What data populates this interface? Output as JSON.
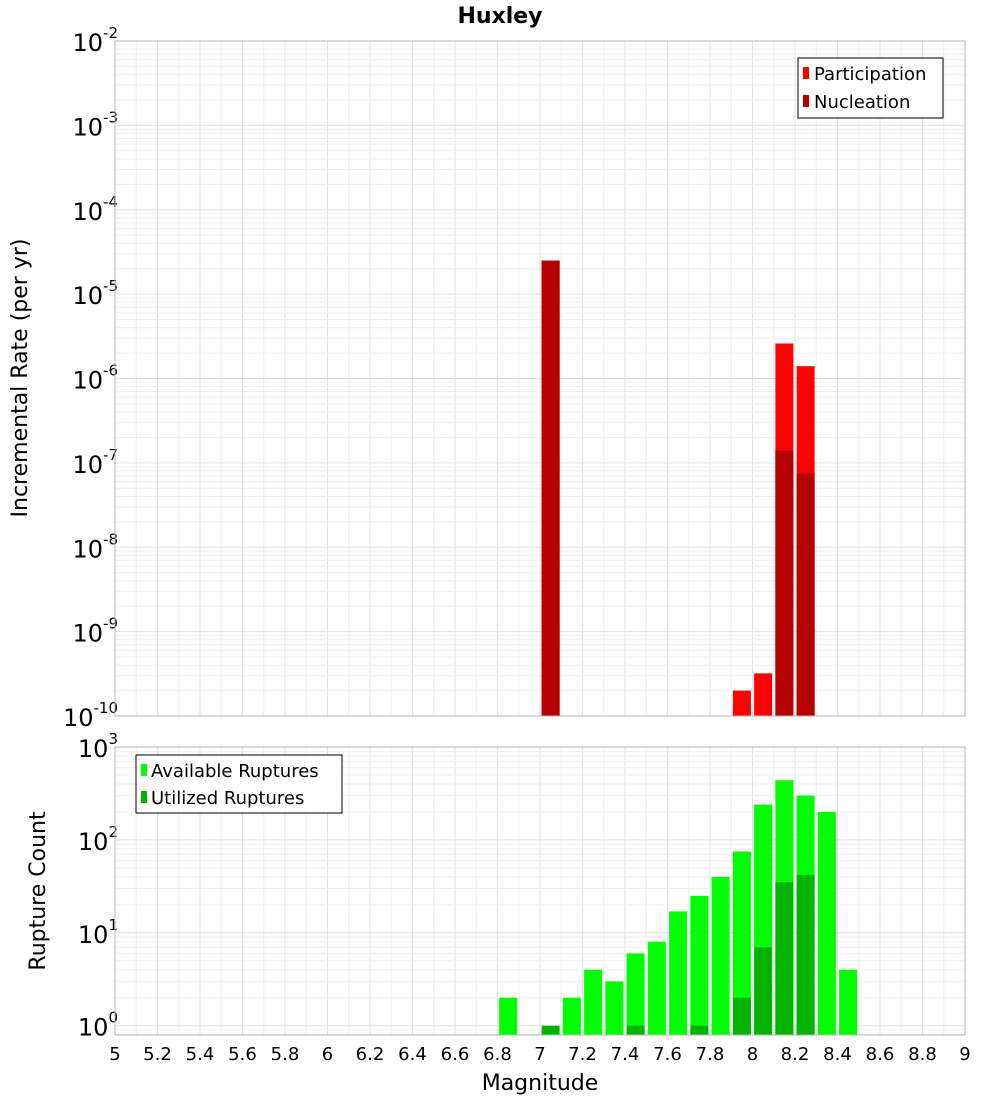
{
  "chart_data": [
    {
      "type": "bar",
      "title": "Huxley",
      "ylabel": "Incremental Rate (per yr)",
      "xlim": [
        5,
        9
      ],
      "ylim_log10": [
        -10,
        -2
      ],
      "y_scale": "log",
      "grid": true,
      "legend_placement": "top-right",
      "series": [
        {
          "name": "Participation",
          "color": "#ff0000",
          "x": [
            7.05,
            7.95,
            8.05,
            8.15,
            8.25
          ],
          "values": [
            2.5e-05,
            2e-10,
            3.2e-10,
            2.6e-06,
            1.4e-06
          ]
        },
        {
          "name": "Nucleation",
          "color": "#b40000",
          "x": [
            7.05,
            8.15,
            8.25
          ],
          "values": [
            2.5e-05,
            1.4e-07,
            7.5e-08
          ]
        }
      ]
    },
    {
      "type": "bar",
      "xlabel": "Magnitude",
      "ylabel": "Rupture Count",
      "xlim": [
        5,
        9
      ],
      "ylim_log10": [
        -0.1,
        3
      ],
      "y_scale": "log",
      "grid": true,
      "legend_placement": "top-left",
      "series": [
        {
          "name": "Available Ruptures",
          "color": "#00ff00",
          "x": [
            6.85,
            7.15,
            7.25,
            7.35,
            7.45,
            7.55,
            7.65,
            7.75,
            7.85,
            7.95,
            8.05,
            8.15,
            8.25,
            8.35,
            8.45
          ],
          "values": [
            2,
            2,
            4,
            3,
            6,
            8,
            17,
            25,
            40,
            75,
            240,
            440,
            300,
            200,
            4
          ]
        },
        {
          "name": "Utilized Ruptures",
          "color": "#00b400",
          "x": [
            7.05,
            7.45,
            7.75,
            7.95,
            8.05,
            8.15,
            8.25
          ],
          "values": [
            1,
            1,
            1,
            2,
            7,
            35,
            42
          ]
        }
      ]
    }
  ],
  "x_ticks": [
    "5",
    "5.2",
    "5.4",
    "5.6",
    "5.8",
    "6",
    "6.2",
    "6.4",
    "6.6",
    "6.8",
    "7",
    "7.2",
    "7.4",
    "7.6",
    "7.8",
    "8",
    "8.2",
    "8.4",
    "8.6",
    "8.8",
    "9"
  ],
  "top_y_ticks": [
    {
      "base": "10",
      "exp": "-2",
      "log": -2
    },
    {
      "base": "10",
      "exp": "-3",
      "log": -3
    },
    {
      "base": "10",
      "exp": "-4",
      "log": -4
    },
    {
      "base": "10",
      "exp": "-5",
      "log": -5
    },
    {
      "base": "10",
      "exp": "-6",
      "log": -6
    },
    {
      "base": "10",
      "exp": "-7",
      "log": -7
    },
    {
      "base": "10",
      "exp": "-8",
      "log": -8
    },
    {
      "base": "10",
      "exp": "-9",
      "log": -9
    },
    {
      "base": "10",
      "exp": "-10",
      "log": -10
    }
  ],
  "bottom_y_ticks": [
    {
      "base": "10",
      "exp": "3",
      "log": 3
    },
    {
      "base": "10",
      "exp": "2",
      "log": 2
    },
    {
      "base": "10",
      "exp": "1",
      "log": 1
    },
    {
      "base": "10",
      "exp": "0",
      "log": 0
    }
  ]
}
